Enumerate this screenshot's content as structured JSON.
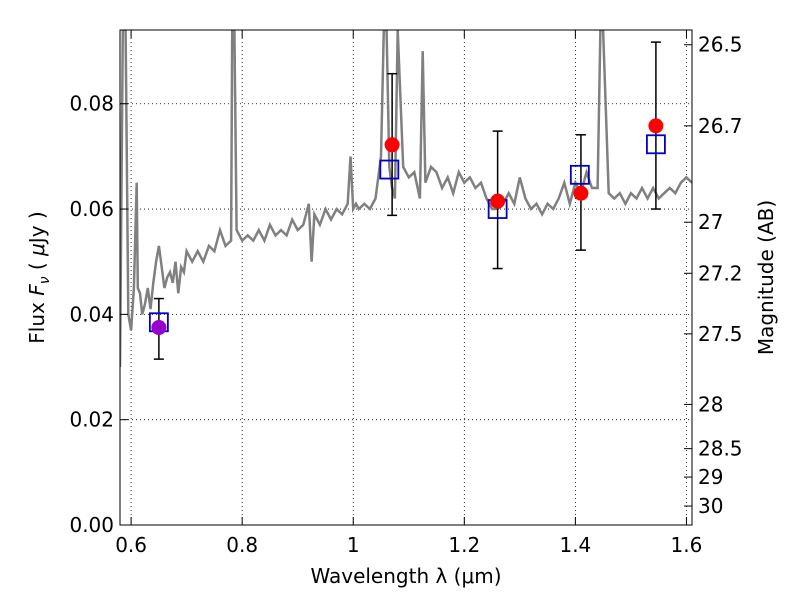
{
  "chart_data": {
    "type": "scatter",
    "xlabel": "Wavelength  λ (μm)",
    "ylabel_parts": {
      "prefix": "Flux  ",
      "symbol": "F",
      "subscript": "ν",
      "open": "  ( ",
      "mu": "μ",
      "unit": "Jy )"
    },
    "ylabel_right": "Magnitude (AB)",
    "xlim": [
      0.58,
      1.61
    ],
    "ylim": [
      0.0,
      0.094
    ],
    "grid": true,
    "x_ticks": [
      0.6,
      0.8,
      1.0,
      1.2,
      1.4,
      1.6
    ],
    "x_tick_labels": [
      "0.6",
      "0.8",
      "1",
      "1.2",
      "1.4",
      "1.6"
    ],
    "y_ticks": [
      0.0,
      0.02,
      0.04,
      0.06,
      0.08
    ],
    "y_tick_labels": [
      "0.00",
      "0.02",
      "0.04",
      "0.06",
      "0.08"
    ],
    "right_ticks": [
      {
        "label": "26.5",
        "flux": 0.0912
      },
      {
        "label": "26.7",
        "flux": 0.0758
      },
      {
        "label": "27",
        "flux": 0.0575
      },
      {
        "label": "27.2",
        "flux": 0.0478
      },
      {
        "label": "27.5",
        "flux": 0.0363
      },
      {
        "label": "28",
        "flux": 0.0229
      },
      {
        "label": "28.5",
        "flux": 0.0145
      },
      {
        "label": "29",
        "flux": 0.0091
      },
      {
        "label": "30",
        "flux": 0.0036
      }
    ],
    "spectrum": {
      "color": "#808080",
      "x": [
        0.58,
        0.585,
        0.59,
        0.595,
        0.6,
        0.605,
        0.61,
        0.612,
        0.616,
        0.62,
        0.625,
        0.63,
        0.635,
        0.64,
        0.645,
        0.65,
        0.655,
        0.66,
        0.665,
        0.67,
        0.675,
        0.68,
        0.685,
        0.69,
        0.695,
        0.7,
        0.71,
        0.72,
        0.73,
        0.74,
        0.75,
        0.76,
        0.77,
        0.78,
        0.782,
        0.786,
        0.79,
        0.8,
        0.81,
        0.82,
        0.83,
        0.84,
        0.85,
        0.86,
        0.87,
        0.88,
        0.89,
        0.9,
        0.91,
        0.92,
        0.925,
        0.93,
        0.94,
        0.95,
        0.96,
        0.97,
        0.98,
        0.99,
        0.995,
        1.0,
        1.005,
        1.01,
        1.02,
        1.03,
        1.04,
        1.05,
        1.055,
        1.06,
        1.065,
        1.07,
        1.075,
        1.08,
        1.09,
        1.1,
        1.11,
        1.12,
        1.125,
        1.13,
        1.14,
        1.15,
        1.16,
        1.17,
        1.18,
        1.19,
        1.2,
        1.21,
        1.22,
        1.23,
        1.24,
        1.25,
        1.26,
        1.27,
        1.28,
        1.29,
        1.3,
        1.31,
        1.32,
        1.33,
        1.34,
        1.35,
        1.36,
        1.37,
        1.38,
        1.39,
        1.4,
        1.41,
        1.42,
        1.43,
        1.44,
        1.445,
        1.45,
        1.46,
        1.47,
        1.48,
        1.49,
        1.5,
        1.51,
        1.52,
        1.53,
        1.54,
        1.55,
        1.56,
        1.57,
        1.58,
        1.59,
        1.6,
        1.61
      ],
      "y": [
        0.03,
        0.094,
        0.094,
        0.04,
        0.037,
        0.045,
        0.065,
        0.045,
        0.044,
        0.04,
        0.042,
        0.045,
        0.041,
        0.046,
        0.05,
        0.053,
        0.049,
        0.045,
        0.047,
        0.048,
        0.046,
        0.05,
        0.044,
        0.049,
        0.048,
        0.052,
        0.05,
        0.052,
        0.05,
        0.053,
        0.052,
        0.056,
        0.053,
        0.054,
        0.094,
        0.094,
        0.056,
        0.054,
        0.055,
        0.054,
        0.056,
        0.054,
        0.057,
        0.055,
        0.056,
        0.055,
        0.058,
        0.056,
        0.057,
        0.061,
        0.05,
        0.059,
        0.057,
        0.06,
        0.058,
        0.06,
        0.059,
        0.061,
        0.07,
        0.06,
        0.061,
        0.06,
        0.061,
        0.06,
        0.062,
        0.07,
        0.094,
        0.094,
        0.068,
        0.064,
        0.062,
        0.094,
        0.068,
        0.066,
        0.067,
        0.062,
        0.09,
        0.065,
        0.068,
        0.067,
        0.064,
        0.066,
        0.063,
        0.067,
        0.065,
        0.066,
        0.064,
        0.065,
        0.062,
        0.06,
        0.06,
        0.061,
        0.063,
        0.061,
        0.066,
        0.062,
        0.06,
        0.061,
        0.059,
        0.061,
        0.06,
        0.062,
        0.065,
        0.061,
        0.065,
        0.063,
        0.067,
        0.064,
        0.064,
        0.094,
        0.094,
        0.063,
        0.062,
        0.063,
        0.061,
        0.063,
        0.062,
        0.064,
        0.062,
        0.064,
        0.062,
        0.063,
        0.064,
        0.063,
        0.065,
        0.066,
        0.065
      ]
    },
    "measured": {
      "color": "#ff0000",
      "x": [
        0.65,
        1.07,
        1.26,
        1.41,
        1.545
      ],
      "y": [
        0.0375,
        0.0722,
        0.0615,
        0.063,
        0.0758
      ],
      "yerr_low": [
        0.0315,
        0.0588,
        0.0487,
        0.0522,
        0.06
      ],
      "yerr_high": [
        0.043,
        0.0857,
        0.0748,
        0.0741,
        0.0917
      ]
    },
    "model": {
      "color": "#0000cc",
      "x": [
        0.65,
        1.065,
        1.26,
        1.408,
        1.545
      ],
      "y": [
        0.0385,
        0.0675,
        0.06,
        0.0665,
        0.0723
      ]
    },
    "highlight": {
      "color": "#9900cc",
      "x": 0.65,
      "y": 0.0375
    }
  }
}
